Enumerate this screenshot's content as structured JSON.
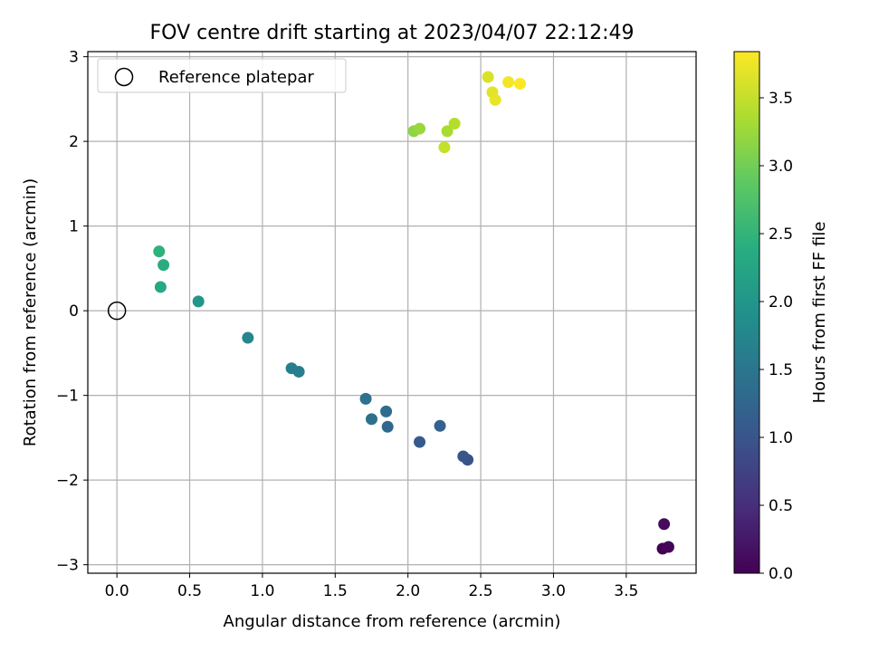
{
  "chart_data": {
    "type": "scatter",
    "title": "FOV centre drift starting at 2023/04/07 22:12:49",
    "xlabel": "Angular distance from reference (arcmin)",
    "ylabel": "Rotation from reference (arcmin)",
    "xlim": [
      -0.2,
      3.98
    ],
    "ylim": [
      -3.1,
      3.06
    ],
    "xticks": [
      0.0,
      0.5,
      1.0,
      1.5,
      2.0,
      2.5,
      3.0,
      3.5
    ],
    "xtick_labels": [
      "0.0",
      "0.5",
      "1.0",
      "1.5",
      "2.0",
      "2.5",
      "3.0",
      "3.5"
    ],
    "yticks": [
      -3,
      -2,
      -1,
      0,
      1,
      2,
      3
    ],
    "ytick_labels": [
      "−3",
      "−2",
      "−1",
      "0",
      "1",
      "2",
      "3"
    ],
    "grid": true,
    "legend": {
      "position": "upper-left",
      "entries": [
        {
          "label": "Reference platepar",
          "marker": "open-circle"
        }
      ]
    },
    "reference_point": {
      "x": 0.0,
      "y": 0.0
    },
    "colorbar": {
      "label": "Hours from first FF file",
      "colormap": "viridis",
      "min": 0.0,
      "max": 3.84,
      "ticks": [
        0.0,
        0.5,
        1.0,
        1.5,
        2.0,
        2.5,
        3.0,
        3.5
      ],
      "tick_labels": [
        "0.0",
        "0.5",
        "1.0",
        "1.5",
        "2.0",
        "2.5",
        "3.0",
        "3.5"
      ]
    },
    "series": [
      {
        "points": [
          {
            "x": 3.75,
            "y": -2.81,
            "c": 0.0
          },
          {
            "x": 3.79,
            "y": -2.79,
            "c": 0.05
          },
          {
            "x": 3.76,
            "y": -2.52,
            "c": 0.12
          },
          {
            "x": 2.41,
            "y": -1.76,
            "c": 0.95
          },
          {
            "x": 2.38,
            "y": -1.72,
            "c": 1.02
          },
          {
            "x": 2.08,
            "y": -1.55,
            "c": 1.08
          },
          {
            "x": 2.22,
            "y": -1.36,
            "c": 1.18
          },
          {
            "x": 1.86,
            "y": -1.37,
            "c": 1.28
          },
          {
            "x": 1.85,
            "y": -1.19,
            "c": 1.35
          },
          {
            "x": 1.75,
            "y": -1.28,
            "c": 1.4
          },
          {
            "x": 1.71,
            "y": -1.04,
            "c": 1.45
          },
          {
            "x": 1.25,
            "y": -0.72,
            "c": 1.62
          },
          {
            "x": 1.2,
            "y": -0.68,
            "c": 1.66
          },
          {
            "x": 0.9,
            "y": -0.32,
            "c": 1.78
          },
          {
            "x": 0.56,
            "y": 0.11,
            "c": 2.02
          },
          {
            "x": 0.3,
            "y": 0.28,
            "c": 2.28
          },
          {
            "x": 0.32,
            "y": 0.54,
            "c": 2.35
          },
          {
            "x": 0.29,
            "y": 0.7,
            "c": 2.45
          },
          {
            "x": 2.04,
            "y": 2.12,
            "c": 3.18
          },
          {
            "x": 2.08,
            "y": 2.15,
            "c": 3.25
          },
          {
            "x": 2.27,
            "y": 2.12,
            "c": 3.35
          },
          {
            "x": 2.32,
            "y": 2.21,
            "c": 3.42
          },
          {
            "x": 2.25,
            "y": 1.93,
            "c": 3.5
          },
          {
            "x": 2.55,
            "y": 2.76,
            "c": 3.62
          },
          {
            "x": 2.58,
            "y": 2.58,
            "c": 3.68
          },
          {
            "x": 2.6,
            "y": 2.49,
            "c": 3.72
          },
          {
            "x": 2.69,
            "y": 2.7,
            "c": 3.78
          },
          {
            "x": 2.77,
            "y": 2.68,
            "c": 3.83
          }
        ]
      }
    ]
  }
}
